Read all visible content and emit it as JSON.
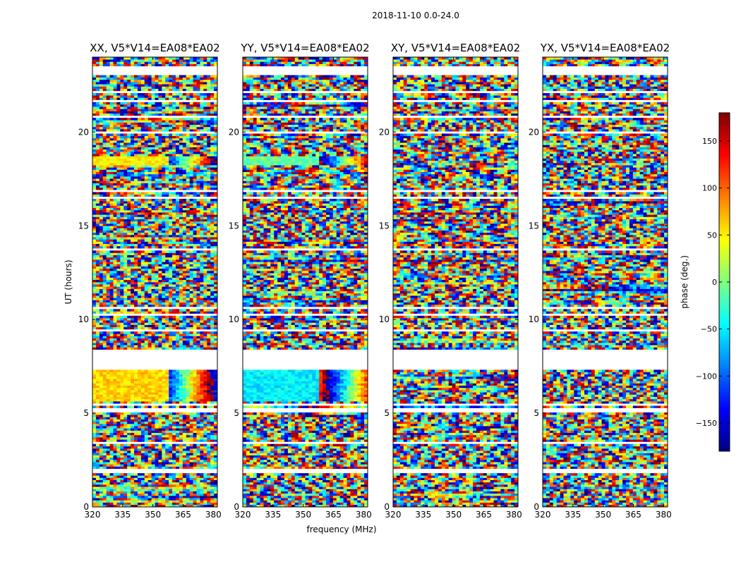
{
  "figure": {
    "suptitle": "2018-11-10 0.0-24.0",
    "xlabel": "frequency (MHz)",
    "ylabel": "UT (hours)"
  },
  "colorbar": {
    "label": "phase (deg.)",
    "range": [
      -180,
      180
    ],
    "ticks": [
      -150,
      -100,
      -50,
      0,
      50,
      100,
      150
    ],
    "tick_labels": [
      "−150",
      "−100",
      "−50",
      "0",
      "50",
      "100",
      "150"
    ],
    "colormap": [
      "#00007f",
      "#0000ff",
      "#007fff",
      "#00ffff",
      "#7fff7f",
      "#ffff00",
      "#ff7f00",
      "#ff0000",
      "#7f0000"
    ]
  },
  "chart_data": {
    "type": "heatmap",
    "quantity": "phase (deg.)",
    "x_range": [
      320,
      382
    ],
    "y_range": [
      0,
      24
    ],
    "x_ticks": [
      320,
      335,
      350,
      365,
      380
    ],
    "y_ticks": [
      0,
      5,
      10,
      15,
      20
    ],
    "panels": [
      {
        "title": "XX, V5*V14=EA08*EA02",
        "dominant_phase_5.5_7.3h": 60,
        "dominant_phase_18.2_18.7h": 50
      },
      {
        "title": "YY, V5*V14=EA08*EA02",
        "dominant_phase_5.5_7.3h": -50,
        "dominant_phase_18.2_18.7h": -10
      },
      {
        "title": "XY, V5*V14=EA08*EA02"
      },
      {
        "title": "YX, V5*V14=EA08*EA02"
      }
    ],
    "data_gaps_UT_hours": [
      [
        1.4,
        1.5
      ],
      [
        1.8,
        2.0
      ],
      [
        3.4,
        3.5
      ],
      [
        5.1,
        5.25
      ],
      [
        5.45,
        5.55
      ],
      [
        7.3,
        8.45
      ],
      [
        9.3,
        9.45
      ],
      [
        10.15,
        10.3
      ],
      [
        10.55,
        10.7
      ],
      [
        13.65,
        13.75
      ],
      [
        16.4,
        16.55
      ],
      [
        16.8,
        16.95
      ],
      [
        19.5,
        19.6
      ],
      [
        19.95,
        20.05
      ],
      [
        20.75,
        20.85
      ],
      [
        21.65,
        21.75
      ],
      [
        22.05,
        22.15
      ],
      [
        23.05,
        23.5
      ]
    ]
  }
}
